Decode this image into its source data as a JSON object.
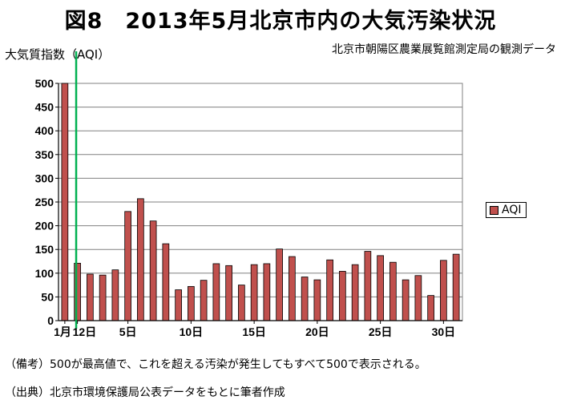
{
  "title": "図8　2013年5月北京市内の大気汚染状況",
  "y_axis_title": "大気質指数（AQI）",
  "source_label": "北京市朝陽区農業展覧館測定局の観測データ",
  "legend": {
    "label": "AQI"
  },
  "footnotes": {
    "note": "（備考）500が最高値で、これを超える汚染が発生してもすべて500で表示される。",
    "source": "（出典）北京市環境保護局公表データをもとに筆者作成"
  },
  "colors": {
    "bar": "#c0504d",
    "bar_edge": "#000000",
    "marker_line": "#00b050",
    "plot_bg": "#ffffff"
  },
  "chart_data": {
    "type": "bar",
    "title": "図8　2013年5月北京市内の大気汚染状況",
    "ylabel": "大気質指数（AQI）",
    "ylim": [
      0,
      500
    ],
    "yticks": [
      0,
      50,
      100,
      150,
      200,
      250,
      300,
      350,
      400,
      450,
      500
    ],
    "grid": true,
    "legend_position": "right",
    "x_tick_labels": [
      {
        "day": 1,
        "label": "1月"
      },
      {
        "day": 2,
        "label": "12日"
      },
      {
        "day": 6,
        "label": "5日"
      },
      {
        "day": 11,
        "label": "10日"
      },
      {
        "day": 16,
        "label": "15日"
      },
      {
        "day": 21,
        "label": "20日"
      },
      {
        "day": 26,
        "label": "25日"
      },
      {
        "day": 31,
        "label": "30日"
      }
    ],
    "marker_after_day": 1,
    "series": [
      {
        "name": "AQI",
        "values": [
          500,
          121,
          98,
          96,
          107,
          230,
          257,
          210,
          162,
          65,
          72,
          85,
          120,
          116,
          75,
          118,
          120,
          151,
          135,
          92,
          86,
          128,
          104,
          118,
          146,
          137,
          123,
          86,
          95,
          53,
          127,
          140
        ]
      }
    ]
  }
}
